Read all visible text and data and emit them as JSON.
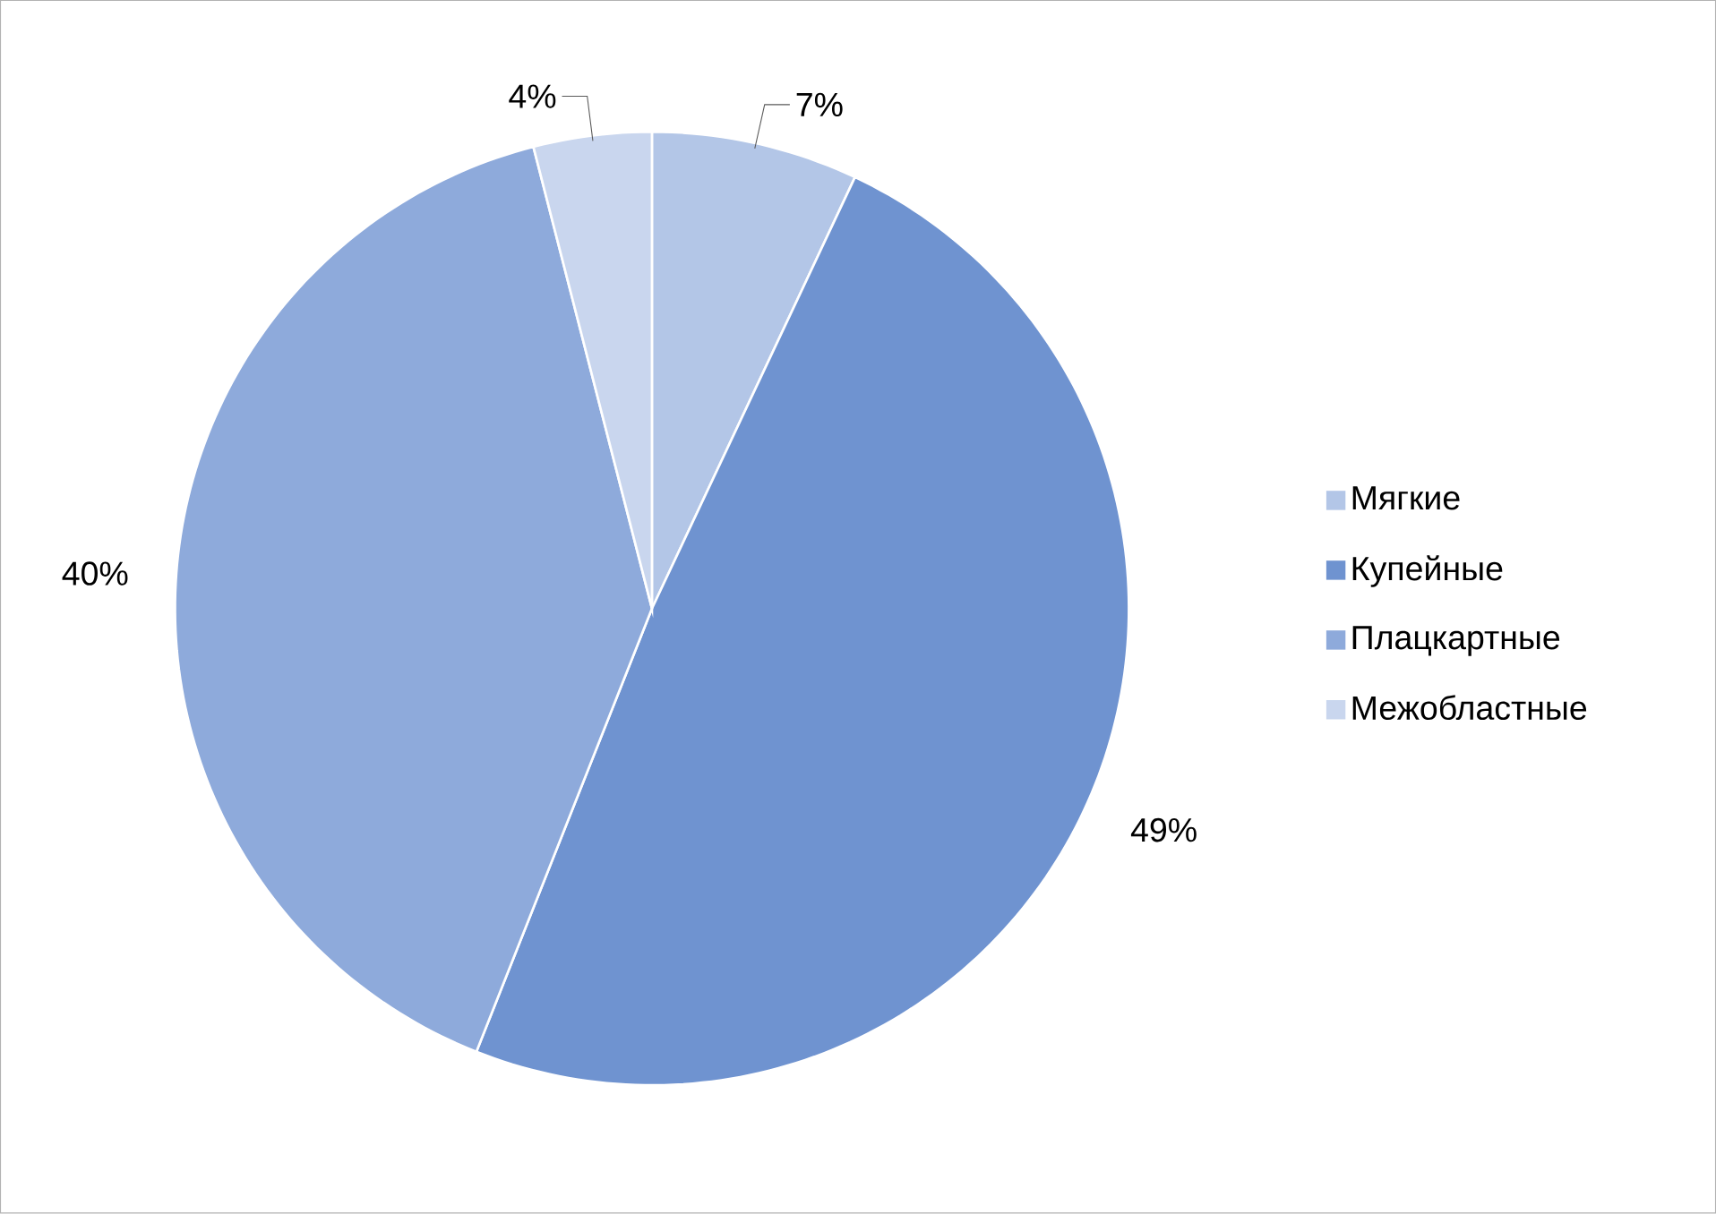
{
  "chart_data": {
    "type": "pie",
    "categories": [
      "Мягкие",
      "Купейные",
      "Плацкартные",
      "Межобластные"
    ],
    "values": [
      7,
      49,
      40,
      4
    ],
    "value_labels": [
      "7%",
      "49%",
      "40%",
      "4%"
    ],
    "colors": [
      "#b3c6e7",
      "#6f93d0",
      "#8eaadb",
      "#c9d6ee"
    ],
    "legend": "right"
  }
}
